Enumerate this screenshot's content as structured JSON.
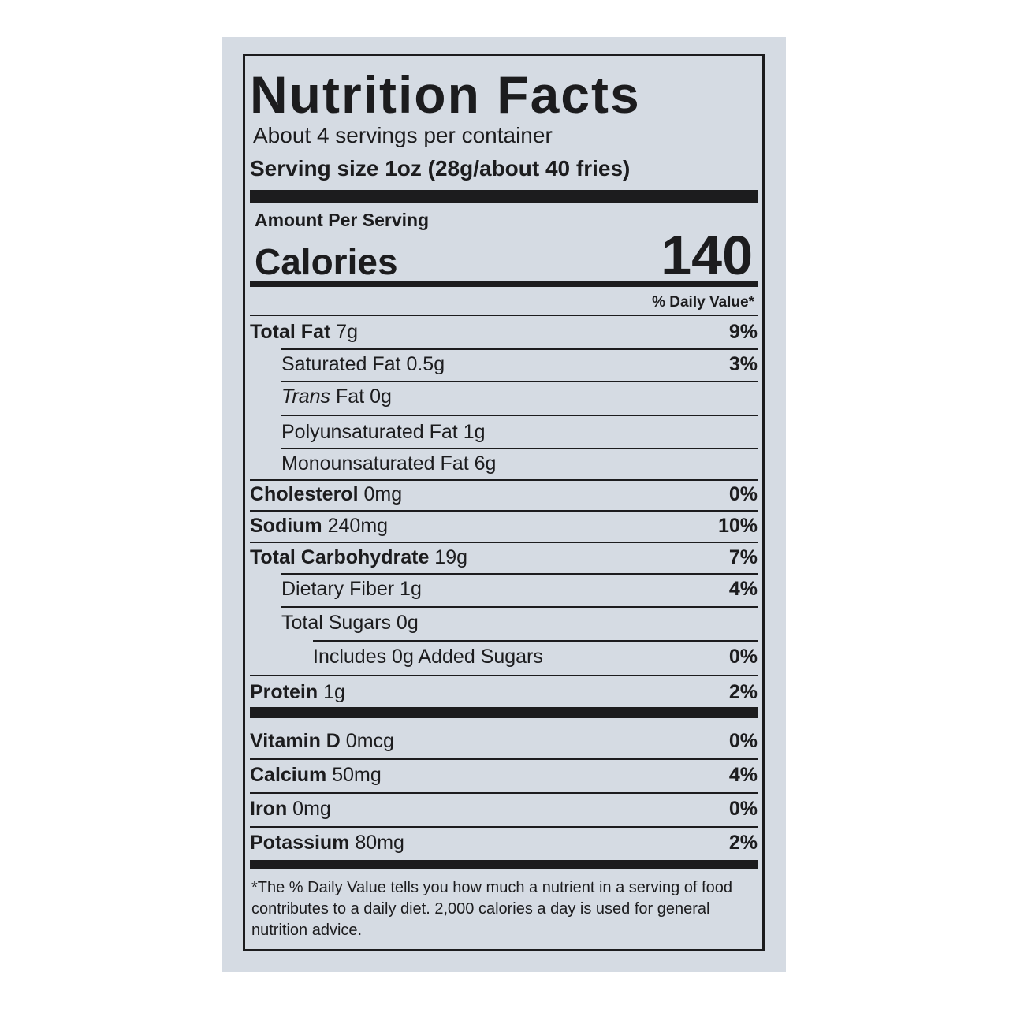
{
  "title": "Nutrition Facts",
  "servings": "About 4 servings per container",
  "serving_size": {
    "label": "Serving size",
    "value": "1oz (28g/about 40 fries)"
  },
  "amount_per_serving": "Amount Per Serving",
  "calories": {
    "label": "Calories",
    "value": "140"
  },
  "daily_value_header": "% Daily Value*",
  "nutrients": [
    {
      "name": "Total Fat",
      "amount": "7g",
      "daily_value": "9%"
    },
    {
      "name": "Saturated Fat",
      "amount": "0.5g",
      "daily_value": "3%"
    },
    {
      "name_italic": "Trans",
      "name": "Fat",
      "amount": "0g"
    },
    {
      "name": "Polyunsaturated Fat",
      "amount": "1g"
    },
    {
      "name": "Monounsaturated Fat",
      "amount": "6g"
    },
    {
      "name": "Cholesterol",
      "amount": "0mg",
      "daily_value": "0%"
    },
    {
      "name": "Sodium",
      "amount": "240mg",
      "daily_value": "10%"
    },
    {
      "name": "Total Carbohydrate",
      "amount": "19g",
      "daily_value": "7%"
    },
    {
      "name": "Dietary Fiber",
      "amount": "1g",
      "daily_value": "4%"
    },
    {
      "name": "Total Sugars",
      "amount": "0g"
    },
    {
      "name": "Includes 0g Added Sugars",
      "daily_value": "0%"
    },
    {
      "name": "Protein",
      "amount": "1g",
      "daily_value": "2%"
    }
  ],
  "vitamins": [
    {
      "name": "Vitamin D",
      "amount": "0mcg",
      "daily_value": "0%"
    },
    {
      "name": "Calcium",
      "amount": "50mg",
      "daily_value": "4%"
    },
    {
      "name": "Iron",
      "amount": "0mg",
      "daily_value": "0%"
    },
    {
      "name": "Potassium",
      "amount": "80mg",
      "daily_value": "2%"
    }
  ],
  "footnote": "*The % Daily Value tells you how much a nutrient in a serving of food contributes to a daily diet. 2,000 calories a day is used for general nutrition advice."
}
